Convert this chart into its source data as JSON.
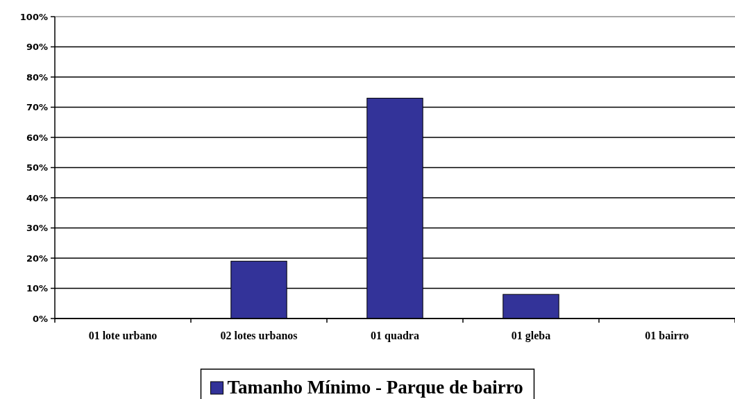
{
  "chart_data": {
    "type": "bar",
    "categories": [
      "01 lote urbano",
      "02 lotes urbanos",
      "01 quadra",
      "01 gleba",
      "01 bairro"
    ],
    "series": [
      {
        "name": "Tamanho Mínimo - Parque de bairro",
        "color": "#333399",
        "values": [
          0,
          19,
          73,
          8,
          0
        ]
      }
    ],
    "ylim": [
      0,
      100
    ],
    "yticks": [
      {
        "value": 0,
        "label": "0%"
      },
      {
        "value": 10,
        "label": "10%"
      },
      {
        "value": 20,
        "label": "20%"
      },
      {
        "value": 30,
        "label": "30%"
      },
      {
        "value": 40,
        "label": "40%"
      },
      {
        "value": 50,
        "label": "50%"
      },
      {
        "value": 60,
        "label": "60%"
      },
      {
        "value": 70,
        "label": "70%"
      },
      {
        "value": 80,
        "label": "80%"
      },
      {
        "value": 90,
        "label": "90%"
      },
      {
        "value": 100,
        "label": "100%"
      }
    ],
    "grid": "y",
    "legend": "bottom"
  }
}
